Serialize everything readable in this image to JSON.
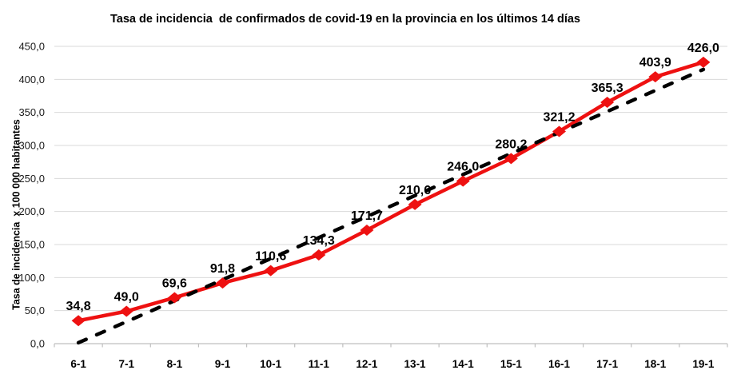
{
  "chart_data": {
    "type": "line",
    "title": "Tasa de incidencia  de confirmados de covid-19 en la provincia en los últimos 14 días",
    "xlabel": "",
    "ylabel": "Tasa de incidencia  x 100 000 habitantes",
    "categories": [
      "6-1",
      "7-1",
      "8-1",
      "9-1",
      "10-1",
      "11-1",
      "12-1",
      "13-1",
      "14-1",
      "15-1",
      "16-1",
      "17-1",
      "18-1",
      "19-1"
    ],
    "values": [
      34.8,
      49.0,
      69.6,
      91.8,
      110.6,
      134.3,
      171.7,
      210.6,
      246.0,
      280.2,
      321.2,
      365.3,
      403.9,
      426.0
    ],
    "data_labels": [
      "34,8",
      "49,0",
      "69,6",
      "91,8",
      "110,6",
      "134,3",
      "171,7",
      "210,6",
      "246,0",
      "280,2",
      "321,2",
      "365,3",
      "403,9",
      "426,0"
    ],
    "ylim": [
      0,
      450
    ],
    "ytick_step": 50,
    "ytick_labels": [
      "0,0",
      "50,0",
      "100,0",
      "150,0",
      "200,0",
      "250,0",
      "300,0",
      "350,0",
      "400,0",
      "450,0"
    ],
    "decimal_separator": ",",
    "grid": true,
    "legend": "none",
    "marker": "diamond",
    "trendline": {
      "type": "linear",
      "style": "dashed",
      "color": "#000000"
    },
    "colors": {
      "series": "#ee1111",
      "trendline": "#000000",
      "gridline": "#d9d9d9",
      "axis": "#bfbfbf",
      "text": "#000000",
      "tick_text": "#1a1a1a",
      "background": "#ffffff"
    }
  }
}
